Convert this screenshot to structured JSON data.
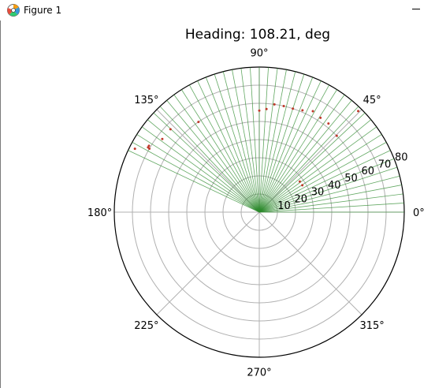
{
  "window": {
    "title": "Figure 1",
    "icon": "matplotlib-icon",
    "controls": [
      "minimize-icon"
    ]
  },
  "chart_data": {
    "type": "polar-scatter",
    "title": "Heading: 108.21, deg",
    "theta_tick_labels": [
      "0°",
      "45°",
      "90°",
      "135°",
      "180°",
      "225°",
      "270°",
      "315°"
    ],
    "theta_ticks_deg": [
      0,
      45,
      90,
      135,
      180,
      225,
      270,
      315
    ],
    "r_ticks": [
      10,
      20,
      30,
      40,
      50,
      60,
      70,
      80
    ],
    "r_tick_labels": [
      "10",
      "20",
      "30",
      "40",
      "50",
      "60",
      "70",
      "80"
    ],
    "rlim": [
      0,
      80
    ],
    "r_label_angle_deg": 22.5,
    "grid": true,
    "colors": {
      "rays": "#2e8b2e",
      "points": "#c0392b",
      "grid": "#b0b0b0"
    },
    "rays_deg": [
      0,
      3.6,
      7.2,
      10.8,
      14.4,
      18,
      21.6,
      25.2,
      28.8,
      32.4,
      36,
      39.6,
      43.2,
      46.8,
      50.4,
      54,
      57.6,
      61.2,
      64.8,
      68.4,
      72,
      75.6,
      79.2,
      82.8,
      86.4,
      90,
      93.6,
      97.2,
      100.8,
      104.4,
      108,
      111.6,
      115.2,
      118.8,
      122.4,
      126,
      129.6,
      133.2,
      136.8,
      140.4,
      144,
      147.6,
      151.2,
      154.8
    ],
    "points": [
      {
        "theta": 32.0,
        "r": 28
      },
      {
        "theta": 37.0,
        "r": 28
      },
      {
        "theta": 44.6,
        "r": 60
      },
      {
        "theta": 45.6,
        "r": 78
      },
      {
        "theta": 52.0,
        "r": 62
      },
      {
        "theta": 57.0,
        "r": 62
      },
      {
        "theta": 62.0,
        "r": 63
      },
      {
        "theta": 67.0,
        "r": 61
      },
      {
        "theta": 72.0,
        "r": 60
      },
      {
        "theta": 77.0,
        "r": 60
      },
      {
        "theta": 82.0,
        "r": 60
      },
      {
        "theta": 86.0,
        "r": 57
      },
      {
        "theta": 90.0,
        "r": 56
      },
      {
        "theta": 124.0,
        "r": 60
      },
      {
        "theta": 137.0,
        "r": 67
      },
      {
        "theta": 143.0,
        "r": 67
      },
      {
        "theta": 149.0,
        "r": 71
      },
      {
        "theta": 149.8,
        "r": 71
      },
      {
        "theta": 150.0,
        "r": 70
      },
      {
        "theta": 153.0,
        "r": 77
      }
    ]
  }
}
